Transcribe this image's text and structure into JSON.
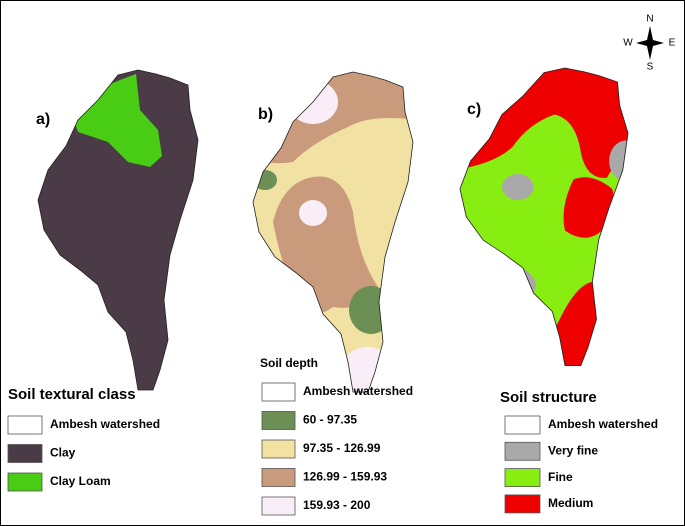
{
  "compass": {
    "north": "N",
    "south": "S",
    "east": "E",
    "west": "W"
  },
  "panels": [
    {
      "label": "a)",
      "legend_title": "Soil textural class",
      "items": [
        {
          "label": "Ambesh watershed",
          "color": "#ffffff"
        },
        {
          "label": "Clay",
          "color": "#4b3b47"
        },
        {
          "label": "Clay Loam",
          "color": "#48cc14"
        }
      ]
    },
    {
      "label": "b)",
      "legend_title": "Soil depth",
      "items": [
        {
          "label": "Ambesh watershed",
          "color": "#ffffff"
        },
        {
          "label": "60 - 97.35",
          "color": "#6b8f55"
        },
        {
          "label": "97.35 - 126.99",
          "color": "#f1e2a4"
        },
        {
          "label": "126.99 - 159.93",
          "color": "#c99a7c"
        },
        {
          "label": "159.93 - 200",
          "color": "#f9eef7"
        }
      ]
    },
    {
      "label": "c)",
      "legend_title": "Soil structure",
      "items": [
        {
          "label": "Ambesh watershed",
          "color": "#ffffff"
        },
        {
          "label": "Very fine",
          "color": "#a9a9a9"
        },
        {
          "label": "Fine",
          "color": "#88ee11"
        },
        {
          "label": "Medium",
          "color": "#ee0000"
        }
      ]
    }
  ]
}
